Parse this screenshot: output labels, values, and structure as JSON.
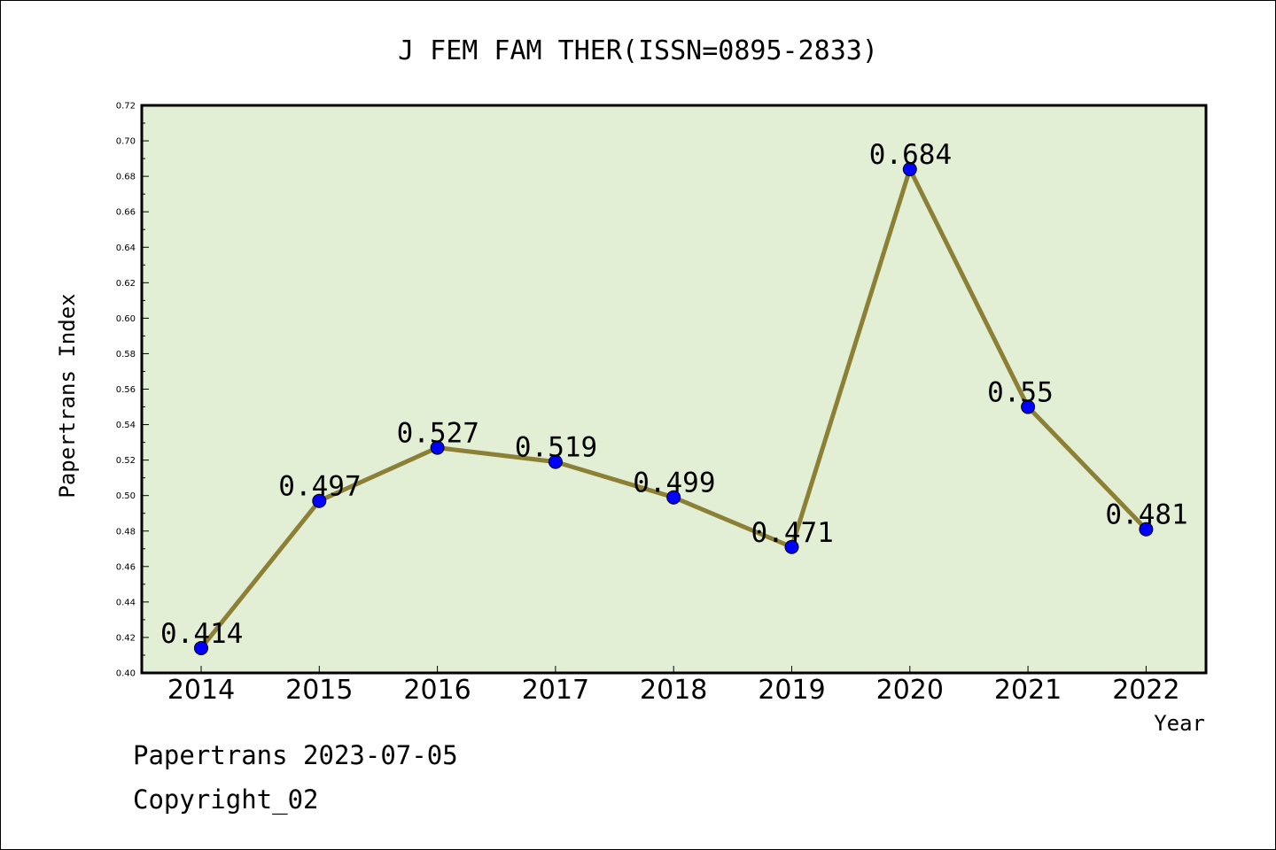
{
  "chart_data": {
    "type": "line",
    "title": "J FEM FAM THER(ISSN=0895-2833)",
    "xlabel": "Year",
    "ylabel": "Papertrans Index",
    "categories": [
      "2014",
      "2015",
      "2016",
      "2017",
      "2018",
      "2019",
      "2020",
      "2021",
      "2022"
    ],
    "series": [
      {
        "values": [
          0.414,
          0.497,
          0.527,
          0.519,
          0.499,
          0.471,
          0.684,
          0.55,
          0.481
        ],
        "data_labels": [
          "0.414",
          "0.497",
          "0.527",
          "0.519",
          "0.499",
          "0.471",
          "0.684",
          "0.55",
          "0.481"
        ]
      }
    ],
    "ylim": [
      0.4,
      0.72
    ],
    "yticks": [
      "0.40",
      "0.42",
      "0.44",
      "0.46",
      "0.48",
      "0.50",
      "0.52",
      "0.54",
      "0.56",
      "0.58",
      "0.60",
      "0.62",
      "0.64",
      "0.66",
      "0.68",
      "0.70",
      "0.72"
    ],
    "grid": false,
    "legend": "none"
  },
  "colors": {
    "plot_background": "#e2efd4",
    "line": "#8b8036",
    "marker": "#0000ff"
  },
  "footer": {
    "date_line": "Papertrans 2023-07-05",
    "copyright": "Copyright_02"
  }
}
